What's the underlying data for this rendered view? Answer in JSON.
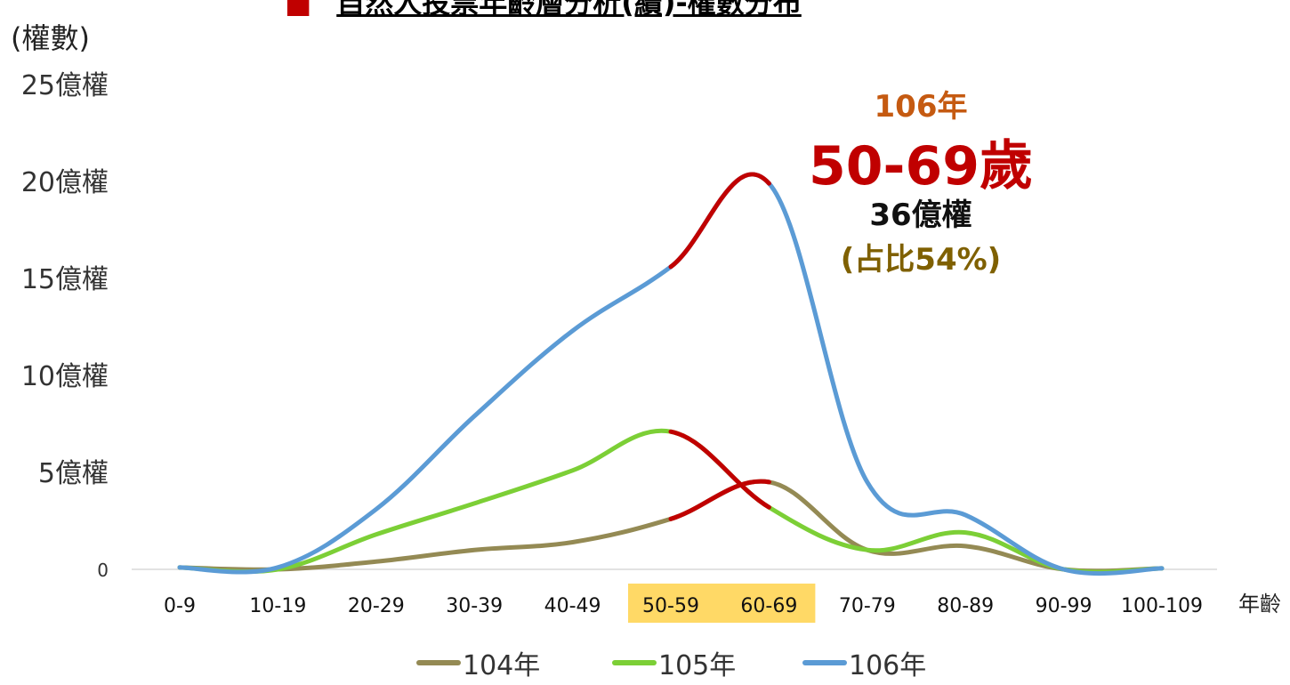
{
  "header": {
    "bullet": "■",
    "title": "自然人投票年齡層分析(續)-權數分布"
  },
  "chart_data": {
    "type": "line",
    "ylabel": "(權數)",
    "xlabel": "年齡",
    "categories": [
      "0-9",
      "10-19",
      "20-29",
      "30-39",
      "40-49",
      "50-59",
      "60-69",
      "70-79",
      "80-89",
      "90-99",
      "100-109"
    ],
    "highlight_categories": [
      "50-59",
      "60-69"
    ],
    "yticks": [
      {
        "value": 0,
        "label": "0"
      },
      {
        "value": 5,
        "label": "5億權"
      },
      {
        "value": 10,
        "label": "10億權"
      },
      {
        "value": 15,
        "label": "15億權"
      },
      {
        "value": 20,
        "label": "20億權"
      },
      {
        "value": 25,
        "label": "25億權"
      }
    ],
    "ylim": [
      0,
      25
    ],
    "series": [
      {
        "name": "104年",
        "color": "#948a54",
        "values": [
          0.1,
          0.0,
          0.4,
          1.0,
          1.4,
          2.6,
          4.5,
          1.0,
          1.2,
          0.0,
          0.05
        ]
      },
      {
        "name": "105年",
        "color": "#7ccf36",
        "values": [
          0.1,
          0.0,
          1.8,
          3.4,
          5.1,
          7.1,
          3.2,
          1.0,
          1.9,
          0.0,
          0.05
        ]
      },
      {
        "name": "106年",
        "color": "#5b9bd5",
        "values": [
          0.1,
          0.1,
          3.1,
          7.9,
          12.3,
          15.6,
          19.9,
          4.5,
          2.8,
          0.0,
          0.05
        ]
      }
    ],
    "highlight_color": "#c00000",
    "highlight_segment": [
      "50-59",
      "60-69"
    ],
    "annotation": {
      "year": "106年",
      "age": "50-69歲",
      "amount": "36億權",
      "share": "(占比54%)",
      "year_color": "#c55a11",
      "age_color": "#c00000",
      "amount_color": "#111111",
      "share_color": "#7f6000"
    },
    "highlight_bg_color": "#ffd966",
    "grid": false,
    "legend_position": "bottom"
  }
}
